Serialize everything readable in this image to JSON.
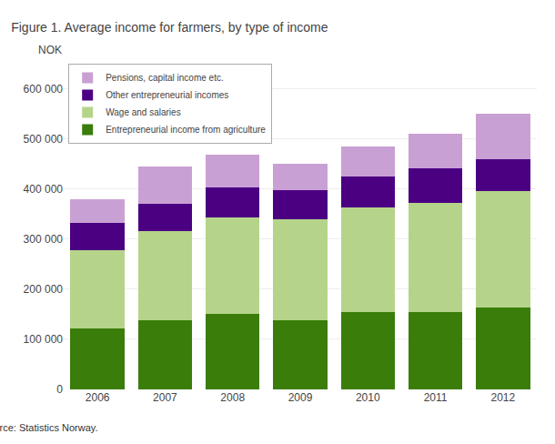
{
  "chart_data": {
    "type": "bar",
    "stacked": true,
    "title": "Figure 1. Average income for farmers, by type of income",
    "ylabel": "NOK",
    "annotations": [
      "Source: Statistics Norway."
    ],
    "categories": [
      "2006",
      "2007",
      "2008",
      "2009",
      "2010",
      "2011",
      "2012"
    ],
    "series": [
      {
        "name": "Entrepreneurial income from agriculture",
        "color": "#3a7d0a",
        "values": [
          122000,
          138000,
          150000,
          138000,
          155000,
          155000,
          163000
        ]
      },
      {
        "name": "Wage and salaries",
        "color": "#b5d48a",
        "values": [
          155000,
          178000,
          193000,
          202000,
          208000,
          218000,
          232000
        ]
      },
      {
        "name": "Other entrepreneurial incomes",
        "color": "#4b0082",
        "values": [
          55000,
          55000,
          60000,
          58000,
          62000,
          68000,
          65000
        ]
      },
      {
        "name": "Pensions, capital income etc.",
        "color": "#c9a0d4",
        "values": [
          47000,
          73000,
          65000,
          52000,
          60000,
          70000,
          90000
        ]
      }
    ],
    "ylim": [
      0,
      650000
    ],
    "yticks": [
      0,
      {
        "value": 100000,
        "label": "100 000"
      },
      {
        "value": 200000,
        "label": "200 000"
      },
      {
        "value": 300000,
        "label": "300 000"
      },
      {
        "value": 400000,
        "label": "400 000"
      },
      {
        "value": 500000,
        "label": "500 000"
      },
      {
        "value": 600000,
        "label": "600 000"
      }
    ],
    "grid": true,
    "legend": "upper left"
  }
}
